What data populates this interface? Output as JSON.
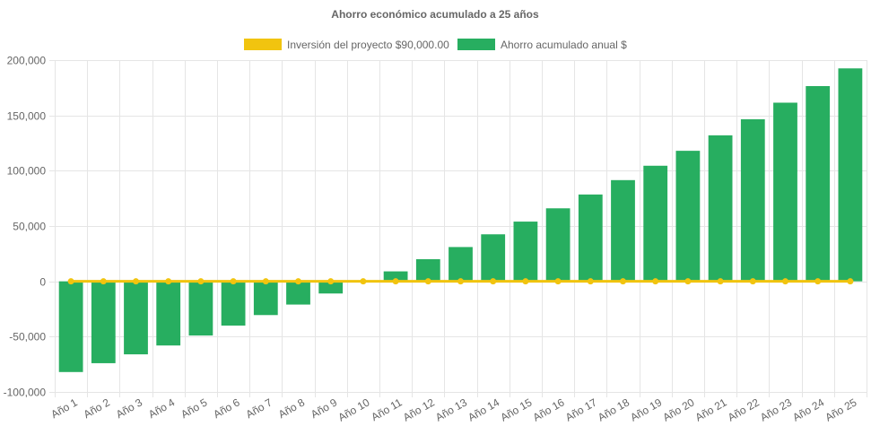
{
  "chart_data": {
    "type": "bar",
    "title": "Ahorro económico acumulado a 25 años",
    "xlabel": "",
    "ylabel": "",
    "ylim": [
      -100000,
      200000
    ],
    "yticks": [
      200000,
      150000,
      100000,
      50000,
      0,
      -50000,
      -100000
    ],
    "ytick_labels": [
      "200,000",
      "150,000",
      "100,000",
      "50,000",
      "0",
      "-50,000",
      "-100,000"
    ],
    "grid": true,
    "legend_position": "top",
    "categories": [
      "Año 1",
      "Año 2",
      "Año 3",
      "Año 4",
      "Año 5",
      "Año 6",
      "Año 7",
      "Año 8",
      "Año 9",
      "Año 10",
      "Año 11",
      "Año 12",
      "Año 13",
      "Año 14",
      "Año 15",
      "Año 16",
      "Año 17",
      "Año 18",
      "Año 19",
      "Año 20",
      "Año 21",
      "Año 22",
      "Año 23",
      "Año 24",
      "Año 25"
    ],
    "series": [
      {
        "name": "Inversión del proyecto $90,000.00",
        "type": "line",
        "color": "#f1c40f",
        "values": [
          0,
          0,
          0,
          0,
          0,
          0,
          0,
          0,
          0,
          0,
          0,
          0,
          0,
          0,
          0,
          0,
          0,
          0,
          0,
          0,
          0,
          0,
          0,
          0,
          0
        ]
      },
      {
        "name": "Ahorro acumulado anual $",
        "type": "bar",
        "color": "#27ae60",
        "values": [
          -82000,
          -74000,
          -66000,
          -58000,
          -49000,
          -40000,
          -30500,
          -21000,
          -11000,
          0,
          9000,
          20000,
          31000,
          42500,
          54000,
          66000,
          78500,
          91500,
          104500,
          118000,
          132000,
          146500,
          161500,
          176500,
          192500
        ]
      }
    ]
  }
}
